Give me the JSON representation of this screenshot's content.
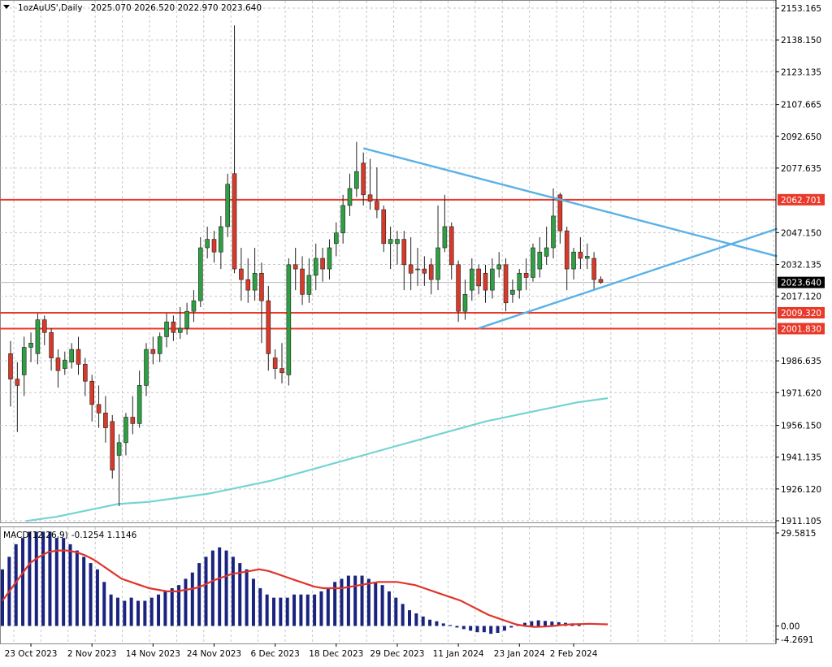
{
  "chart_data": [
    {
      "type": "candlestick",
      "header": {
        "symbol": "1ozAuUS'",
        "timeframe": "Daily",
        "ohlc": "2025.070 2026.520 2022.970 2023.640"
      },
      "ylim": [
        1911.105,
        2153.165
      ],
      "y_ticks": [
        "2153.165",
        "2138.150",
        "2123.135",
        "2107.665",
        "2092.650",
        "2077.635",
        "2047.150",
        "2032.135",
        "2017.120",
        "1986.635",
        "1971.620",
        "1956.150",
        "1941.135",
        "1926.120",
        "1911.105"
      ],
      "price_levels": [
        {
          "label": "2062.701",
          "value": 2062.701,
          "color": "#e8392a"
        },
        {
          "label": "2009.320",
          "value": 2009.32,
          "color": "#e8392a"
        },
        {
          "label": "2001.830",
          "value": 2001.83,
          "color": "#e8392a"
        }
      ],
      "current_price": {
        "label": "2023.640",
        "value": 2023.64
      },
      "candles": [
        [
          1990,
          1978,
          1996,
          1965
        ],
        [
          1978,
          1975,
          1986,
          1953
        ],
        [
          1980,
          1993,
          1998,
          1970
        ],
        [
          1993,
          1995,
          2000,
          1986
        ],
        [
          1990,
          2006,
          2009,
          1985
        ],
        [
          2006,
          2000,
          2008,
          1994
        ],
        [
          2000,
          1988,
          2002,
          1982
        ],
        [
          1988,
          1982,
          1992,
          1974
        ],
        [
          1983,
          1987,
          1991,
          1980
        ],
        [
          1986,
          1992,
          1995,
          1983
        ],
        [
          1992,
          1985,
          1998,
          1980
        ],
        [
          1985,
          1977,
          1988,
          1970
        ],
        [
          1977,
          1966,
          1980,
          1958
        ],
        [
          1966,
          1962,
          1975,
          1955
        ],
        [
          1962,
          1955,
          1970,
          1948
        ],
        [
          1958,
          1935,
          1961,
          1931
        ],
        [
          1942,
          1948,
          1952,
          1918
        ],
        [
          1948,
          1960,
          1962,
          1942
        ],
        [
          1960,
          1957,
          1970,
          1952
        ],
        [
          1957,
          1975,
          1982,
          1955
        ],
        [
          1975,
          1992,
          1995,
          1970
        ],
        [
          1992,
          1990,
          1998,
          1985
        ],
        [
          1990,
          1998,
          2000,
          1986
        ],
        [
          1998,
          2005,
          2009,
          1993
        ],
        [
          2005,
          2000,
          2008,
          1996
        ],
        [
          2000,
          2002,
          2012,
          1997
        ],
        [
          2002,
          2010,
          2014,
          1999
        ],
        [
          2010,
          2015,
          2020,
          2005
        ],
        [
          2015,
          2040,
          2045,
          2012
        ],
        [
          2040,
          2044,
          2050,
          2035
        ],
        [
          2044,
          2038,
          2048,
          2033
        ],
        [
          2038,
          2050,
          2055,
          2030
        ],
        [
          2050,
          2070,
          2075,
          2045
        ],
        [
          2075,
          2030,
          2145,
          2028
        ],
        [
          2030,
          2025,
          2040,
          2015
        ],
        [
          2025,
          2020,
          2035,
          2014
        ],
        [
          2020,
          2028,
          2040,
          2015
        ],
        [
          2028,
          2015,
          2033,
          1995
        ],
        [
          2015,
          1990,
          2022,
          1982
        ],
        [
          1988,
          1983,
          1992,
          1978
        ],
        [
          1983,
          1981,
          1995,
          1976
        ],
        [
          1980,
          2032,
          2035,
          1975
        ],
        [
          2032,
          2030,
          2040,
          2020
        ],
        [
          2030,
          2018,
          2036,
          2013
        ],
        [
          2018,
          2027,
          2035,
          2014
        ],
        [
          2027,
          2035,
          2042,
          2020
        ],
        [
          2035,
          2030,
          2040,
          2024
        ],
        [
          2030,
          2040,
          2044,
          2025
        ],
        [
          2042,
          2047,
          2052,
          2036
        ],
        [
          2047,
          2060,
          2065,
          2042
        ],
        [
          2060,
          2068,
          2075,
          2055
        ],
        [
          2068,
          2076,
          2090,
          2064
        ],
        [
          2080,
          2065,
          2085,
          2060
        ],
        [
          2065,
          2062,
          2082,
          2058
        ],
        [
          2062,
          2058,
          2078,
          2054
        ],
        [
          2058,
          2042,
          2060,
          2038
        ],
        [
          2042,
          2044,
          2050,
          2030
        ],
        [
          2042,
          2044,
          2048,
          2032
        ],
        [
          2044,
          2032,
          2048,
          2020
        ],
        [
          2032,
          2028,
          2045,
          2020
        ],
        [
          2030,
          2030,
          2040,
          2022
        ],
        [
          2030,
          2028,
          2036,
          2022
        ],
        [
          2032,
          2025,
          2035,
          2018
        ],
        [
          2025,
          2040,
          2060,
          2020
        ],
        [
          2040,
          2050,
          2065,
          2038
        ],
        [
          2050,
          2032,
          2052,
          2025
        ],
        [
          2032,
          2010,
          2034,
          2005
        ],
        [
          2010,
          2018,
          2025,
          2006
        ],
        [
          2020,
          2030,
          2035,
          2015
        ],
        [
          2030,
          2022,
          2032,
          2018
        ],
        [
          2028,
          2020,
          2032,
          2014
        ],
        [
          2020,
          2030,
          2035,
          2016
        ],
        [
          2030,
          2032,
          2038,
          2026
        ],
        [
          2032,
          2014,
          2035,
          2010
        ],
        [
          2018,
          2020,
          2025,
          2014
        ],
        [
          2020,
          2028,
          2030,
          2016
        ],
        [
          2028,
          2026,
          2035,
          2020
        ],
        [
          2026,
          2040,
          2042,
          2024
        ],
        [
          2030,
          2038,
          2045,
          2026
        ],
        [
          2036,
          2040,
          2050,
          2032
        ],
        [
          2040,
          2055,
          2068,
          2035
        ],
        [
          2065,
          2048,
          2066,
          2042
        ],
        [
          2048,
          2030,
          2050,
          2020
        ],
        [
          2030,
          2038,
          2040,
          2025
        ],
        [
          2038,
          2035,
          2045,
          2030
        ],
        [
          2035,
          2036,
          2042,
          2030
        ],
        [
          2035,
          2025,
          2038,
          2020
        ],
        [
          2025.07,
          2023.64,
          2026.52,
          2022.97
        ]
      ],
      "moving_average": [
        1911,
        1913,
        1916,
        1919,
        1920,
        1922,
        1924,
        1927,
        1930,
        1934,
        1938,
        1942,
        1946,
        1950,
        1954,
        1958,
        1961,
        1964,
        1967,
        1969
      ],
      "trendlines": [
        {
          "from": [
            52,
            2087
          ],
          "to": [
            113,
            2036
          ],
          "color": "#5ab1e6"
        },
        {
          "from": [
            69,
            2002
          ],
          "to": [
            113,
            2049
          ],
          "color": "#5ab1e6"
        }
      ],
      "x_ticks": [
        {
          "label": "23 Oct 2023",
          "index": 3
        },
        {
          "label": "2 Nov 2023",
          "index": 12
        },
        {
          "label": "14 Nov 2023",
          "index": 21
        },
        {
          "label": "24 Nov 2023",
          "index": 30
        },
        {
          "label": "6 Dec 2023",
          "index": 39
        },
        {
          "label": "18 Dec 2023",
          "index": 48
        },
        {
          "label": "29 Dec 2023",
          "index": 57
        },
        {
          "label": "11 Jan 2024",
          "index": 66
        },
        {
          "label": "23 Jan 2024",
          "index": 75
        },
        {
          "label": "2 Feb 2024",
          "index": 83
        }
      ],
      "colors": {
        "up": "#2ea043",
        "down": "#d83a2a",
        "wick": "#222222",
        "ma": "#74d4d0",
        "level": "#e8392a",
        "trend": "#5ab1e6"
      }
    },
    {
      "type": "bar",
      "indicator": "MACD",
      "header": {
        "label": "MACD(12,26,9)",
        "values": "-0.1254 1.1146"
      },
      "ylim": [
        -4.2691,
        29.5815
      ],
      "y_ticks": [
        "29.5815",
        "0.00",
        "-4.2691"
      ],
      "histogram": [
        18,
        22,
        26,
        28,
        30,
        30,
        30,
        30,
        28,
        28,
        26,
        24,
        22,
        20,
        18,
        14,
        10,
        9,
        8,
        9,
        8,
        8,
        9,
        10,
        11,
        12,
        13,
        15,
        17,
        20,
        22,
        24,
        25,
        24,
        22,
        20,
        18,
        15,
        12,
        10,
        9,
        9,
        9,
        10,
        10,
        10,
        10,
        11,
        12,
        14,
        15,
        16,
        16,
        16,
        15,
        14,
        13,
        11,
        9,
        7,
        5,
        4,
        3,
        2,
        1.5,
        0.8,
        0.3,
        -0.5,
        -1.0,
        -1.5,
        -2.0,
        -2.0,
        -2.5,
        -2.2,
        -1.5,
        -0.5,
        0.3,
        1.0,
        1.5,
        1.8,
        1.6,
        1.4,
        1.2,
        1.0,
        0.8,
        0.6
      ],
      "signal": [
        8,
        12,
        16,
        20,
        22,
        23.5,
        24,
        24,
        23.5,
        22.5,
        21,
        19,
        17,
        15,
        14,
        13,
        12,
        11.5,
        11,
        11,
        11.5,
        12,
        13,
        14.5,
        15.5,
        16.5,
        17,
        17.5,
        18,
        17.5,
        16.5,
        15.5,
        14.5,
        13.5,
        12.5,
        12,
        12,
        12,
        12.5,
        13,
        13.5,
        14,
        14,
        14,
        13.5,
        13,
        12,
        11,
        10,
        9,
        8,
        6.5,
        5,
        3.5,
        2.5,
        1.5,
        0.5,
        0,
        -0.3,
        -0.2,
        0,
        0.3,
        0.5,
        0.6,
        0.7,
        0.6,
        0.5
      ],
      "colors": {
        "histogram": "#1a237e",
        "signal": "#e0352b"
      }
    }
  ]
}
